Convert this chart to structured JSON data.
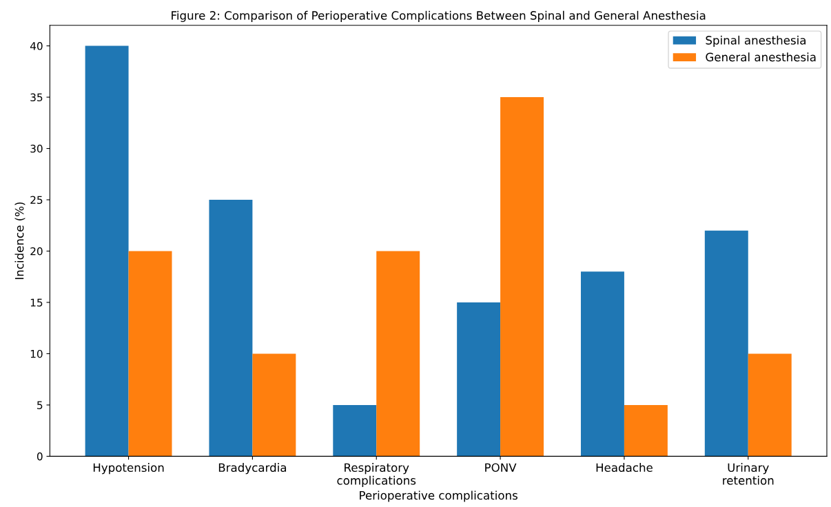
{
  "chart_data": {
    "type": "bar",
    "title": "Figure 2: Comparison of Perioperative Complications Between Spinal and General Anesthesia",
    "xlabel": "Perioperative complications",
    "ylabel": "Incidence (%)",
    "categories": [
      "Hypotension",
      "Bradycardia",
      "Respiratory\ncomplications",
      "PONV",
      "Headache",
      "Urinary\nretention"
    ],
    "series": [
      {
        "name": "Spinal anesthesia",
        "color": "#1f77b4",
        "values": [
          40,
          25,
          5,
          15,
          18,
          22
        ]
      },
      {
        "name": "General anesthesia",
        "color": "#ff7f0e",
        "values": [
          20,
          10,
          20,
          35,
          5,
          10
        ]
      }
    ],
    "ylim": [
      0,
      42
    ],
    "yticks": [
      0,
      5,
      10,
      15,
      20,
      25,
      30,
      35,
      40
    ],
    "legend": "top right",
    "grid": false
  }
}
